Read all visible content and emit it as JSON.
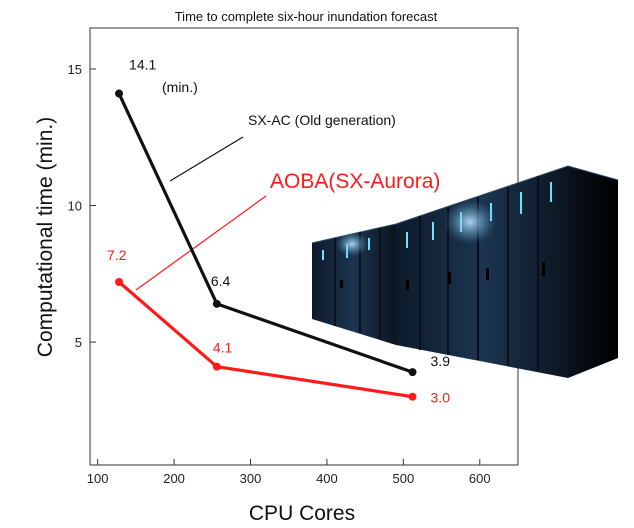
{
  "chart_data": {
    "type": "line",
    "title": "Time to complete six-hour inundation forecast",
    "xlabel": "CPU Cores",
    "ylabel": "Computational time (min.)",
    "xlim": [
      90,
      650
    ],
    "ylim": [
      0.5,
      16.5
    ],
    "xticks": [
      100,
      200,
      300,
      400,
      500,
      600
    ],
    "yticks": [
      5,
      10,
      15
    ],
    "grid": false,
    "series": [
      {
        "name": "SX-AC  (Old generation)",
        "color": "#111111",
        "x": [
          128,
          256,
          512
        ],
        "y": [
          14.1,
          6.4,
          3.9
        ],
        "labels": [
          "14.1",
          "6.4",
          "3.9"
        ]
      },
      {
        "name": "AOBA(SX-Aurora)",
        "color": "#ff1a1a",
        "x": [
          128,
          256,
          512
        ],
        "y": [
          7.2,
          4.1,
          3.0
        ],
        "labels": [
          "7.2",
          "4.1",
          "3.0"
        ]
      }
    ],
    "annotations": {
      "unit": "(min.)"
    },
    "image_icon": "supercomputer-racks-image"
  }
}
